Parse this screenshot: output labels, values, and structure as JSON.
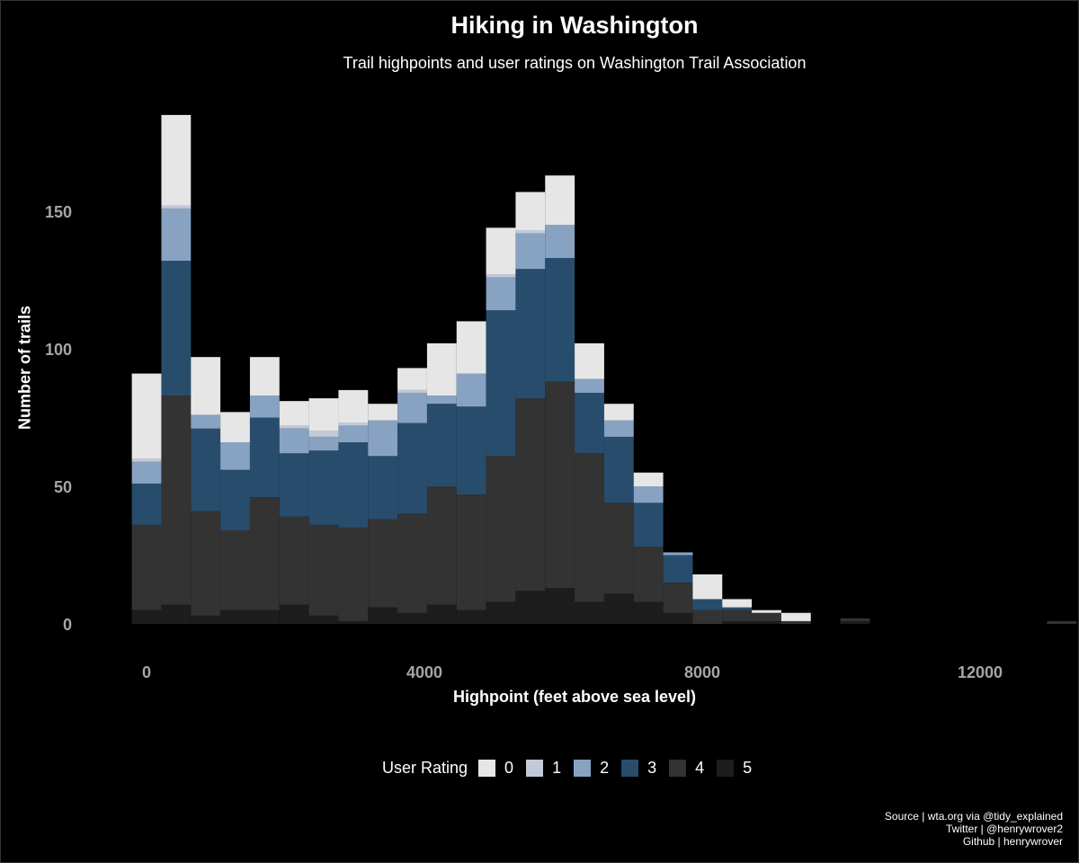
{
  "chart_data": {
    "type": "bar",
    "stacked": true,
    "title": "Hiking in Washington",
    "subtitle": "Trail highpoints and user ratings on Washington Trail Association",
    "xlabel": "Highpoint (feet above sea level)",
    "ylabel": "Number of trails",
    "xlim": [
      -250,
      12750
    ],
    "ylim": [
      0,
      190
    ],
    "x_ticks": [
      0,
      4000,
      8000,
      12000
    ],
    "x_tick_labels": [
      "0",
      "4000",
      "8000",
      "12000"
    ],
    "y_ticks": [
      0,
      50,
      100,
      150
    ],
    "y_tick_labels": [
      "0",
      "50",
      "100",
      "150"
    ],
    "grid": false,
    "bin_width": 425,
    "bin_start": -212,
    "legend_title": "User Rating",
    "legend_position": "bottom",
    "legend": [
      {
        "label": "0",
        "color": "#e6e6e6"
      },
      {
        "label": "1",
        "color": "#c2cad8"
      },
      {
        "label": "2",
        "color": "#88a2c2"
      },
      {
        "label": "3",
        "color": "#284d6c"
      },
      {
        "label": "4",
        "color": "#333333"
      },
      {
        "label": "5",
        "color": "#1d1d1d"
      }
    ],
    "series": [
      {
        "name": "5",
        "color": "#1d1d1d",
        "values": [
          5,
          7,
          3,
          5,
          5,
          7,
          3,
          1,
          6,
          4,
          7,
          5,
          8,
          12,
          13,
          8,
          11,
          8,
          4,
          0,
          1,
          1,
          0,
          0,
          1,
          0,
          0,
          0,
          0,
          0,
          0,
          0
        ]
      },
      {
        "name": "4",
        "color": "#333333",
        "values": [
          31,
          76,
          38,
          29,
          41,
          32,
          33,
          34,
          32,
          36,
          43,
          42,
          53,
          70,
          75,
          54,
          33,
          20,
          11,
          5,
          4,
          3,
          1,
          0,
          1,
          0,
          0,
          0,
          0,
          0,
          0,
          1
        ]
      },
      {
        "name": "3",
        "color": "#284d6c",
        "values": [
          15,
          49,
          30,
          22,
          29,
          23,
          27,
          31,
          23,
          33,
          30,
          32,
          53,
          47,
          45,
          22,
          24,
          16,
          10,
          4,
          1,
          0,
          0,
          0,
          0,
          0,
          0,
          0,
          0,
          0,
          0,
          0
        ]
      },
      {
        "name": "2",
        "color": "#88a2c2",
        "values": [
          8,
          19,
          5,
          10,
          8,
          9,
          5,
          6,
          13,
          11,
          3,
          12,
          12,
          13,
          12,
          5,
          6,
          6,
          1,
          0,
          0,
          0,
          0,
          0,
          0,
          0,
          0,
          0,
          0,
          0,
          0,
          0
        ]
      },
      {
        "name": "1",
        "color": "#c2cad8",
        "values": [
          1,
          1,
          0,
          0,
          0,
          1,
          2,
          1,
          0,
          1,
          0,
          0,
          1,
          1,
          0,
          0,
          0,
          0,
          0,
          0,
          0,
          0,
          0,
          0,
          0,
          0,
          0,
          0,
          0,
          0,
          0,
          0
        ]
      },
      {
        "name": "0",
        "color": "#e6e6e6",
        "values": [
          31,
          33,
          21,
          11,
          14,
          9,
          12,
          12,
          6,
          8,
          19,
          19,
          17,
          14,
          18,
          13,
          6,
          5,
          0,
          9,
          3,
          1,
          3,
          0,
          0,
          0,
          0,
          0,
          0,
          0,
          0,
          0
        ]
      }
    ],
    "caption": [
      "Source | wta.org via @tidy_explained",
      "Twitter | @henrywrover2",
      "Github | henrywrover"
    ]
  }
}
